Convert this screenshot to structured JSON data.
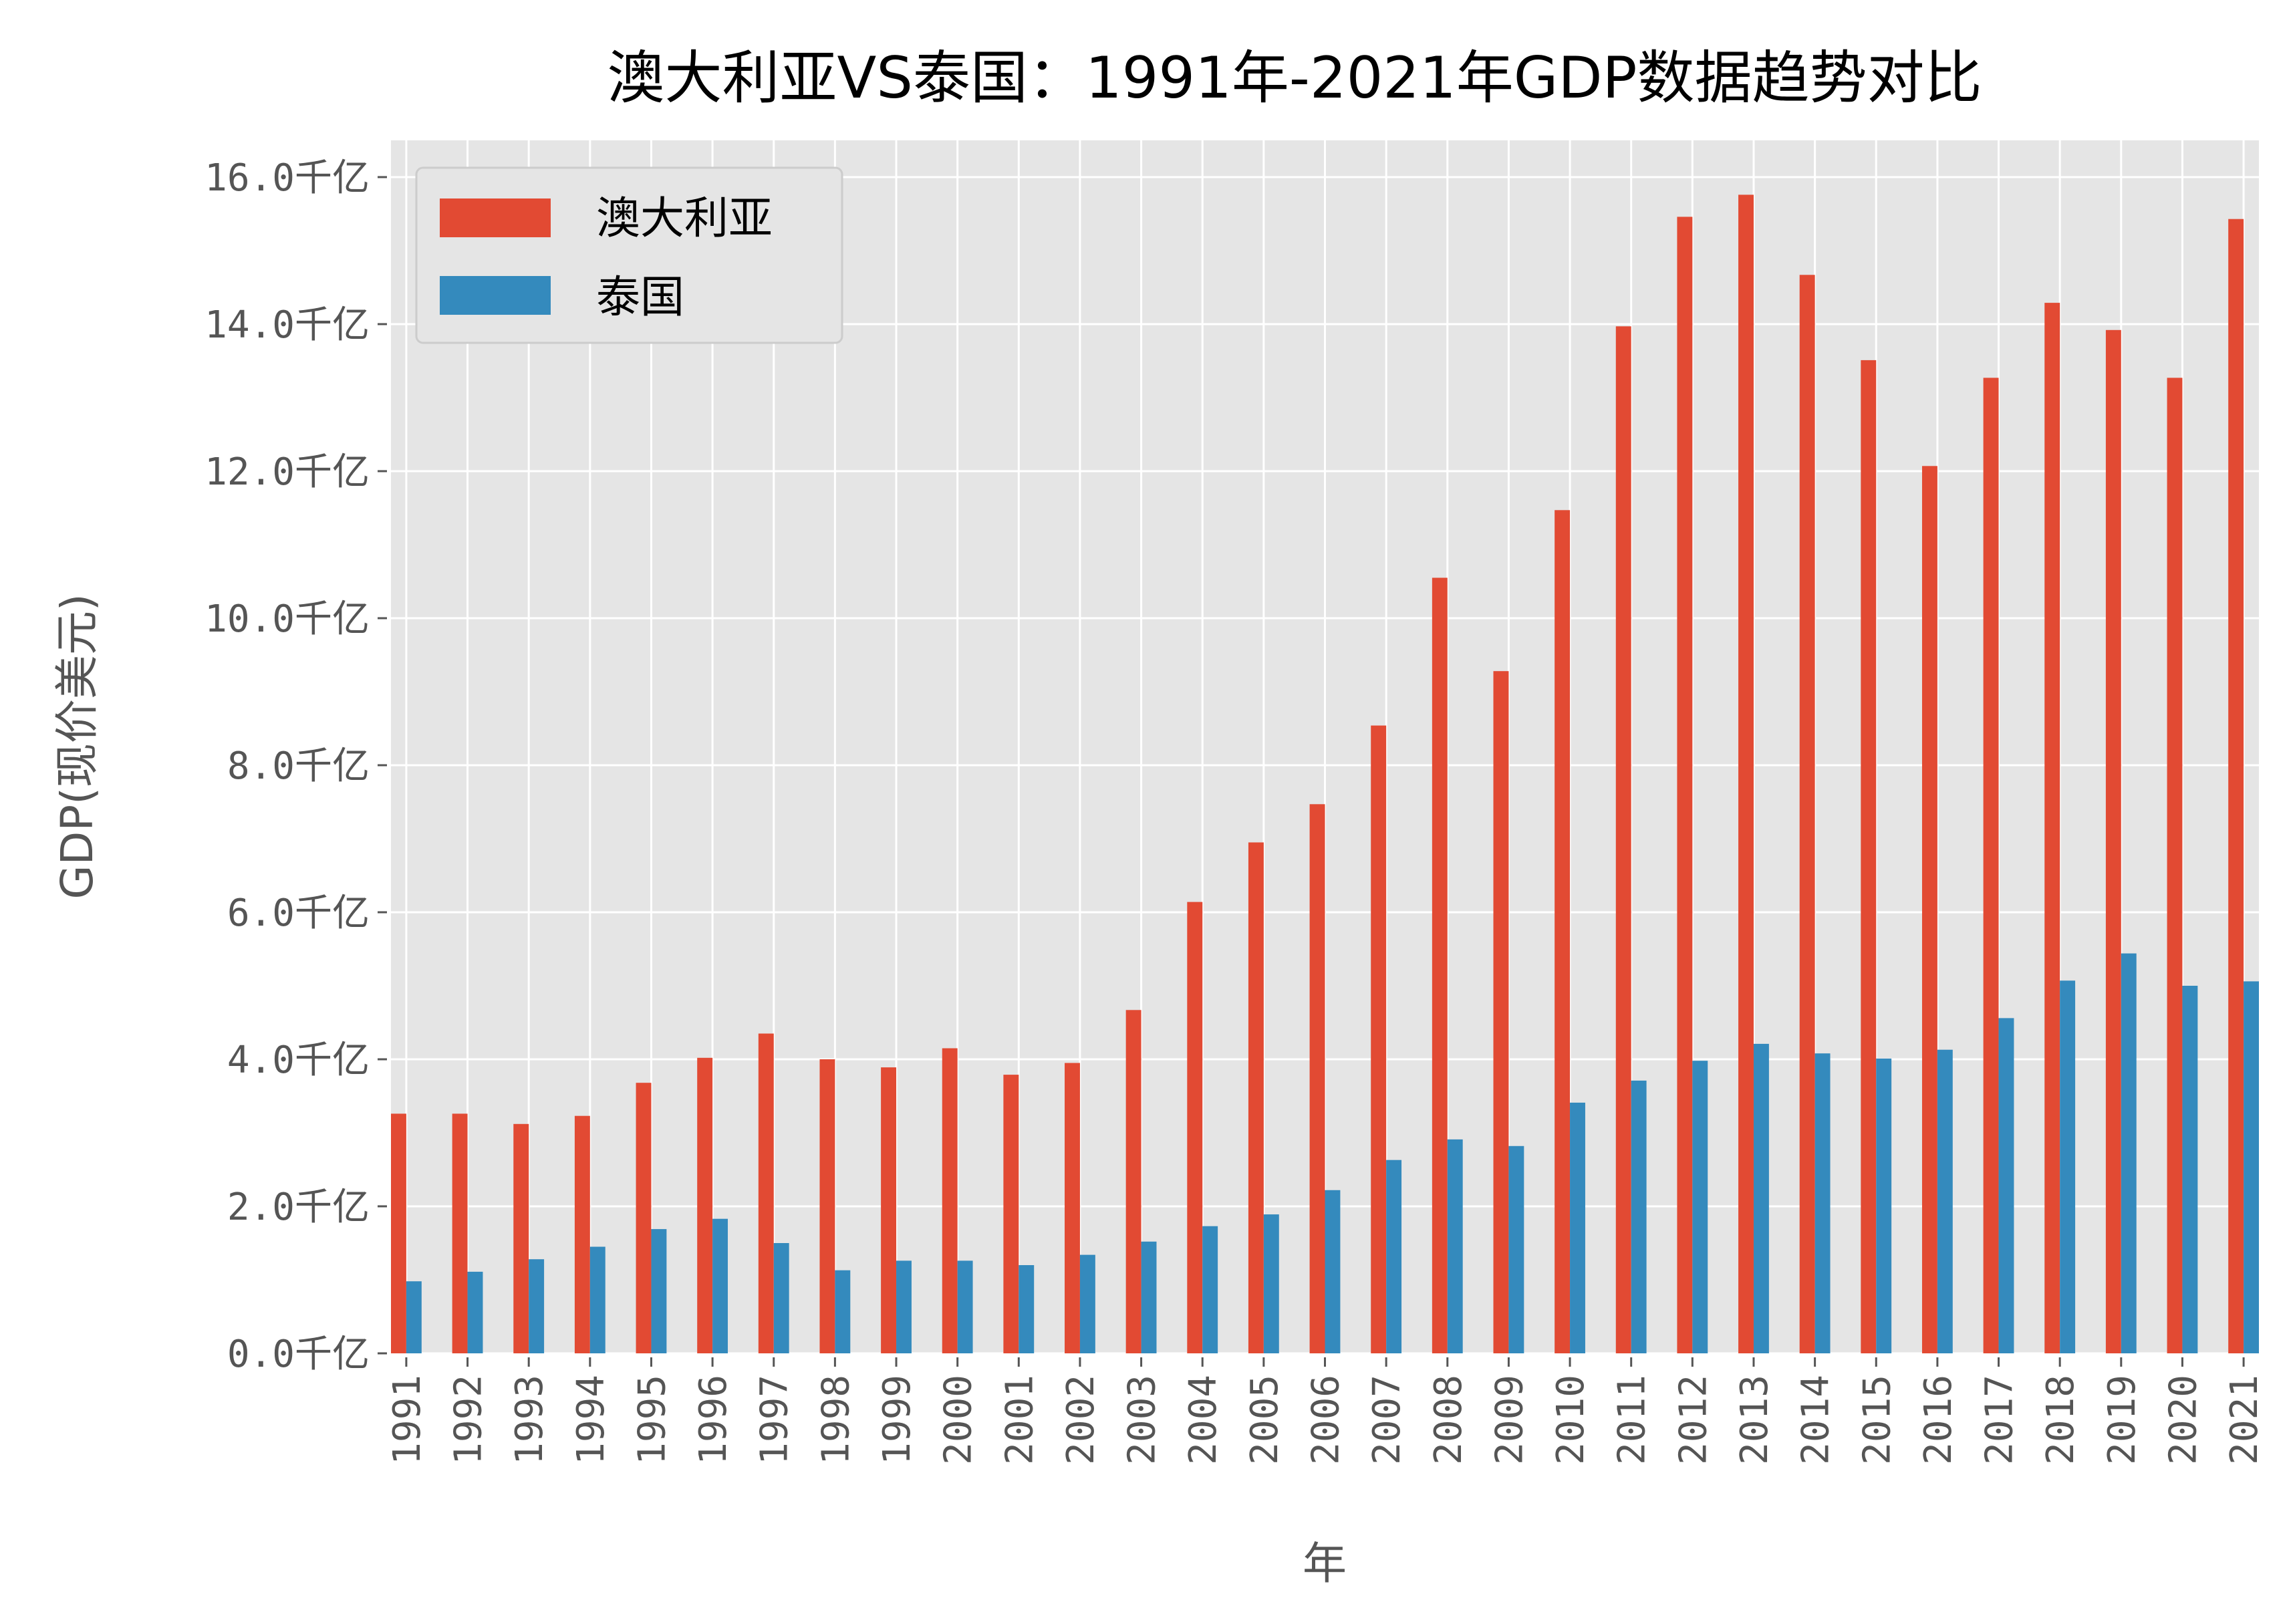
{
  "chart_data": {
    "type": "bar",
    "title": "澳大利亚VS泰国：1991年-2021年GDP数据趋势对比",
    "xlabel": "年",
    "ylabel": "GDP(现价美元)",
    "ylim": [
      0,
      16.5
    ],
    "yticks": [
      0,
      2,
      4,
      6,
      8,
      10,
      12,
      14,
      16
    ],
    "ytick_labels": [
      "0.0千亿",
      "2.0千亿",
      "4.0千亿",
      "6.0千亿",
      "8.0千亿",
      "10.0千亿",
      "12.0千亿",
      "14.0千亿",
      "16.0千亿"
    ],
    "categories": [
      "1991",
      "1992",
      "1993",
      "1994",
      "1995",
      "1996",
      "1997",
      "1998",
      "1999",
      "2000",
      "2001",
      "2002",
      "2003",
      "2004",
      "2005",
      "2006",
      "2007",
      "2008",
      "2009",
      "2010",
      "2011",
      "2012",
      "2013",
      "2014",
      "2015",
      "2016",
      "2017",
      "2018",
      "2019",
      "2020",
      "2021"
    ],
    "series": [
      {
        "name": "澳大利亚",
        "color": "#e24a33",
        "values": [
          3.26,
          3.26,
          3.12,
          3.23,
          3.68,
          4.02,
          4.35,
          4.0,
          3.89,
          4.15,
          3.79,
          3.95,
          4.67,
          6.14,
          6.95,
          7.47,
          8.54,
          10.55,
          9.28,
          11.47,
          13.97,
          15.46,
          15.76,
          14.67,
          13.51,
          12.07,
          13.27,
          14.29,
          13.92,
          13.27,
          15.43
        ]
      },
      {
        "name": "泰国",
        "color": "#348abd",
        "values": [
          0.98,
          1.11,
          1.28,
          1.45,
          1.69,
          1.83,
          1.5,
          1.13,
          1.26,
          1.26,
          1.2,
          1.34,
          1.52,
          1.73,
          1.89,
          2.22,
          2.63,
          2.91,
          2.82,
          3.41,
          3.71,
          3.98,
          4.21,
          4.08,
          4.01,
          4.13,
          4.56,
          5.07,
          5.44,
          5.0,
          5.06
        ]
      }
    ],
    "grid": true,
    "legend_position": "top-left",
    "background_color": "#e5e5e5",
    "grid_color": "#ffffff"
  }
}
